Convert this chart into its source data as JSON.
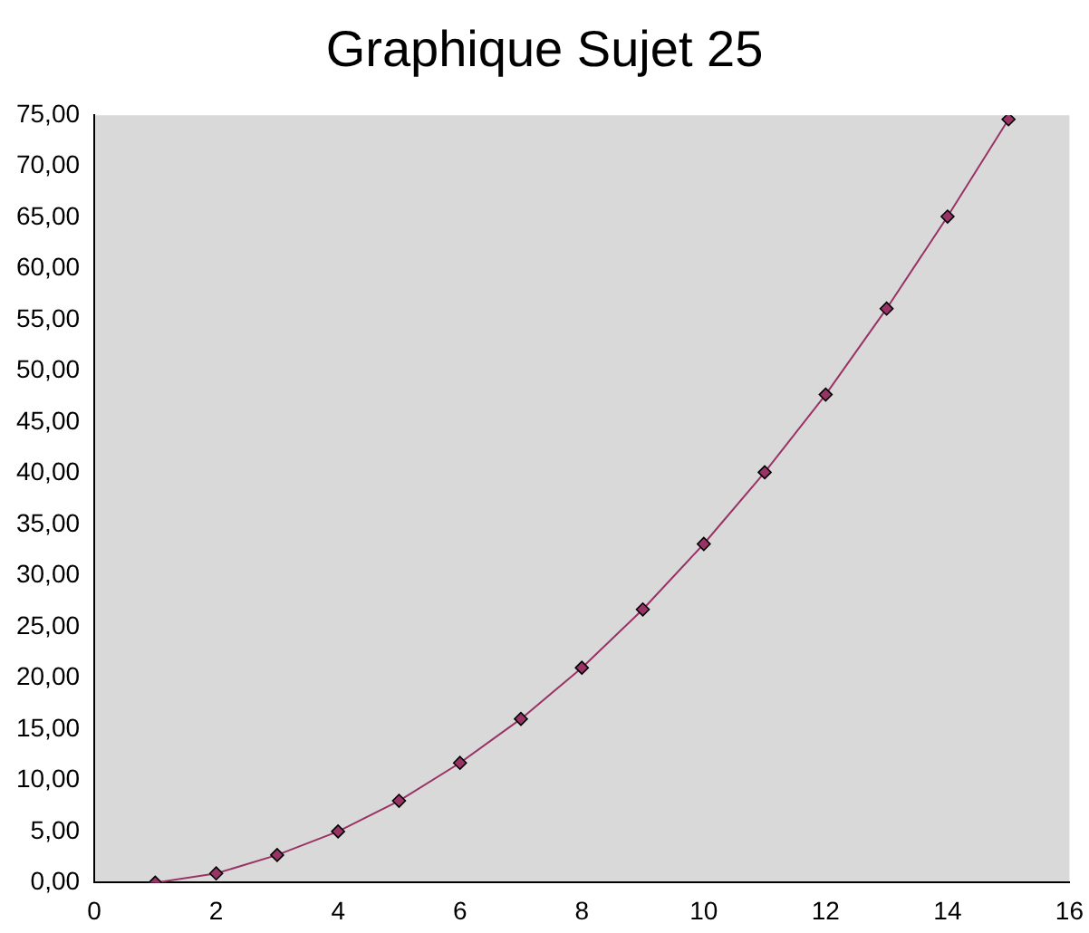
{
  "chart_data": {
    "type": "line",
    "title": "Graphique Sujet 25",
    "x": [
      1,
      2,
      3,
      4,
      5,
      6,
      7,
      8,
      9,
      10,
      11,
      12,
      13,
      14,
      15
    ],
    "series": [
      {
        "color": "#993366",
        "values": [
          0,
          0.9,
          2.7,
          5.0,
          8.0,
          11.7,
          16.0,
          21.0,
          26.7,
          33.1,
          40.1,
          47.7,
          56.1,
          65.1,
          74.6
        ]
      }
    ],
    "xlim": [
      0,
      16
    ],
    "xticks": [
      0,
      2,
      4,
      6,
      8,
      10,
      12,
      14,
      16
    ],
    "ylim": [
      0,
      75
    ],
    "yticks": [
      {
        "value": 0,
        "label": "0,00"
      },
      {
        "value": 5,
        "label": "5,00"
      },
      {
        "value": 10,
        "label": "10,00"
      },
      {
        "value": 15,
        "label": "15,00"
      },
      {
        "value": 20,
        "label": "20,00"
      },
      {
        "value": 25,
        "label": "25,00"
      },
      {
        "value": 30,
        "label": "30,00"
      },
      {
        "value": 35,
        "label": "35,00"
      },
      {
        "value": 40,
        "label": "40,00"
      },
      {
        "value": 45,
        "label": "45,00"
      },
      {
        "value": 50,
        "label": "50,00"
      },
      {
        "value": 55,
        "label": "55,00"
      },
      {
        "value": 60,
        "label": "60,00"
      },
      {
        "value": 65,
        "label": "65,00"
      },
      {
        "value": 70,
        "label": "70,00"
      },
      {
        "value": 75,
        "label": "75,00"
      }
    ],
    "grid": false,
    "legend": false,
    "marker": "diamond",
    "line_style": "solid"
  }
}
